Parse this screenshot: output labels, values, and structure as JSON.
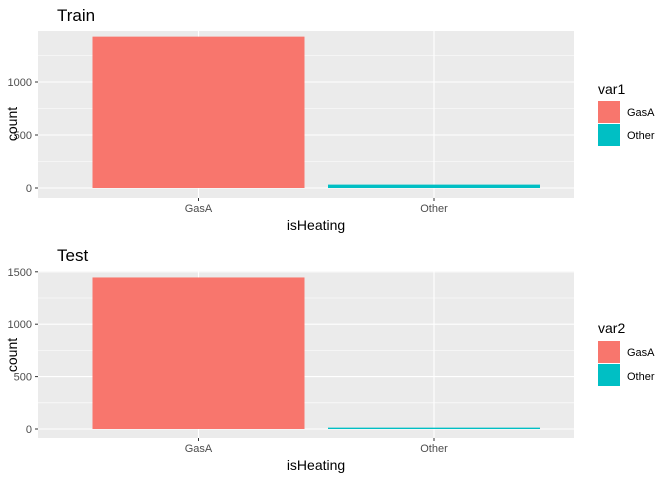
{
  "chart_data": [
    {
      "type": "bar",
      "title": "Train",
      "xlabel": "isHeating",
      "ylabel": "count",
      "categories": [
        "GasA",
        "Other"
      ],
      "values": [
        1428,
        32
      ],
      "ylim": [
        0,
        1460
      ],
      "yticks": [
        0,
        500,
        1000
      ],
      "grid": true,
      "legend": {
        "title": "var1",
        "position": "right",
        "entries": [
          "GasA",
          "Other"
        ],
        "colors": [
          "#F8766D",
          "#00BFC4"
        ]
      }
    },
    {
      "type": "bar",
      "title": "Test",
      "xlabel": "isHeating",
      "ylabel": "count",
      "categories": [
        "GasA",
        "Other"
      ],
      "values": [
        1446,
        13
      ],
      "ylim": [
        0,
        1520
      ],
      "yticks": [
        0,
        500,
        1000,
        1500
      ],
      "grid": true,
      "legend": {
        "title": "var2",
        "position": "right",
        "entries": [
          "GasA",
          "Other"
        ],
        "colors": [
          "#F8766D",
          "#00BFC4"
        ]
      }
    }
  ],
  "colors": {
    "panel_background": "#EBEBEB",
    "grid_major": "#FFFFFF",
    "text_dark": "#000000",
    "text_tick": "#4D4D4D"
  }
}
